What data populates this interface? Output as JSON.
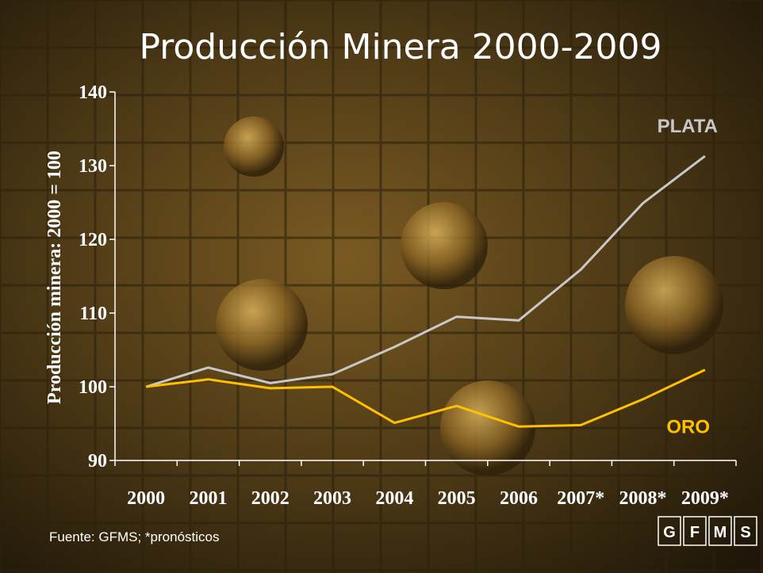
{
  "chart_data": {
    "type": "line",
    "title": "Producción Minera 2000-2009",
    "y_label": "Producción minera: 2000 = 100",
    "categories": [
      "2000",
      "2001",
      "2002",
      "2003",
      "2004",
      "2005",
      "2006",
      "2007*",
      "2008*",
      "2009*"
    ],
    "series": [
      {
        "name": "PLATA",
        "color": "#c8c8c8",
        "values": [
          100,
          102.6,
          100.5,
          101.7,
          105.4,
          109.5,
          109.0,
          115.9,
          124.9,
          131.3
        ]
      },
      {
        "name": "ORO",
        "color": "#ffc000",
        "values": [
          100,
          101.0,
          99.8,
          100.0,
          95.1,
          97.4,
          94.6,
          94.8,
          98.3,
          102.3
        ]
      }
    ],
    "ylim": [
      90,
      140
    ],
    "yticks": [
      90,
      100,
      110,
      120,
      130,
      140
    ],
    "source": "Fuente: GFMS; *pronósticos",
    "logo": [
      "G",
      "F",
      "M",
      "S"
    ]
  }
}
